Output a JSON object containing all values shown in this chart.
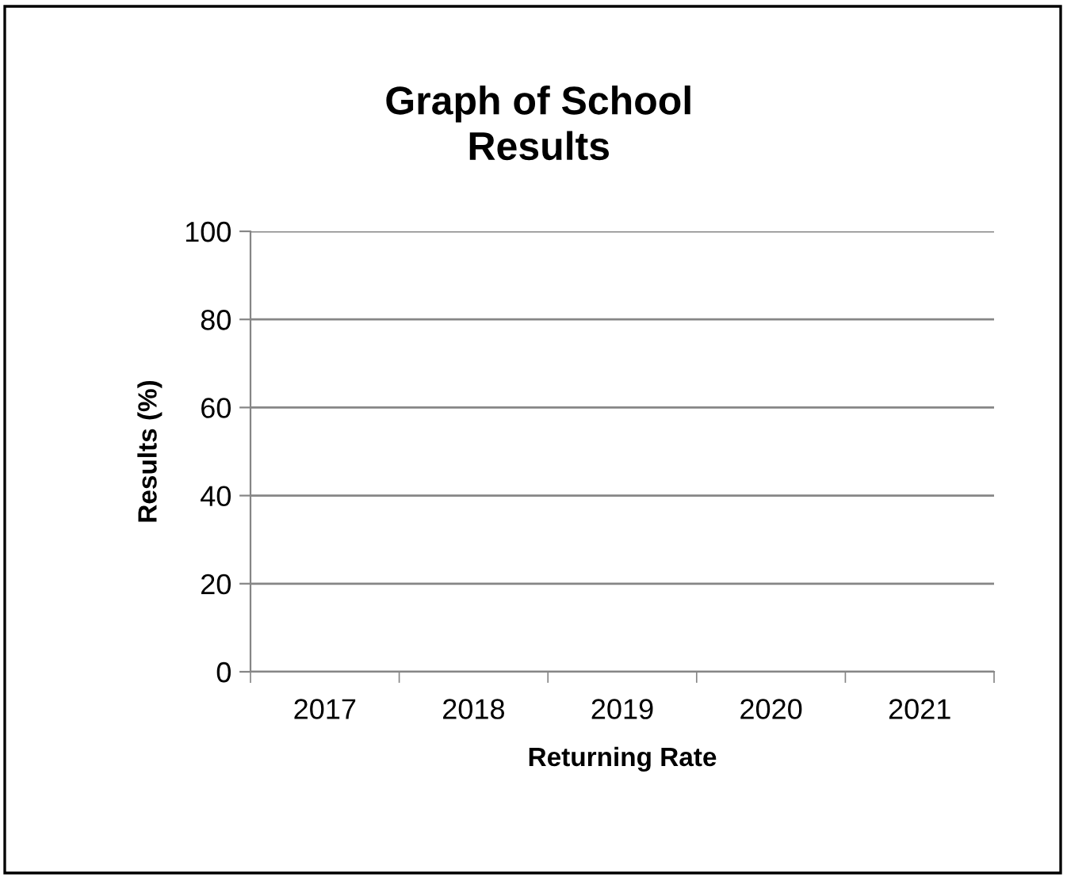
{
  "chart_data": {
    "type": "bar",
    "title": "Graph of School\nResults",
    "xlabel": "Returning Rate",
    "ylabel": "Results (%)",
    "categories": [
      "2017",
      "2018",
      "2019",
      "2020",
      "2021"
    ],
    "values": [
      null,
      null,
      null,
      null,
      null
    ],
    "ylim": [
      0,
      100
    ],
    "yticks": [
      0,
      20,
      40,
      60,
      80,
      100
    ],
    "grid": "y",
    "legend": false
  }
}
